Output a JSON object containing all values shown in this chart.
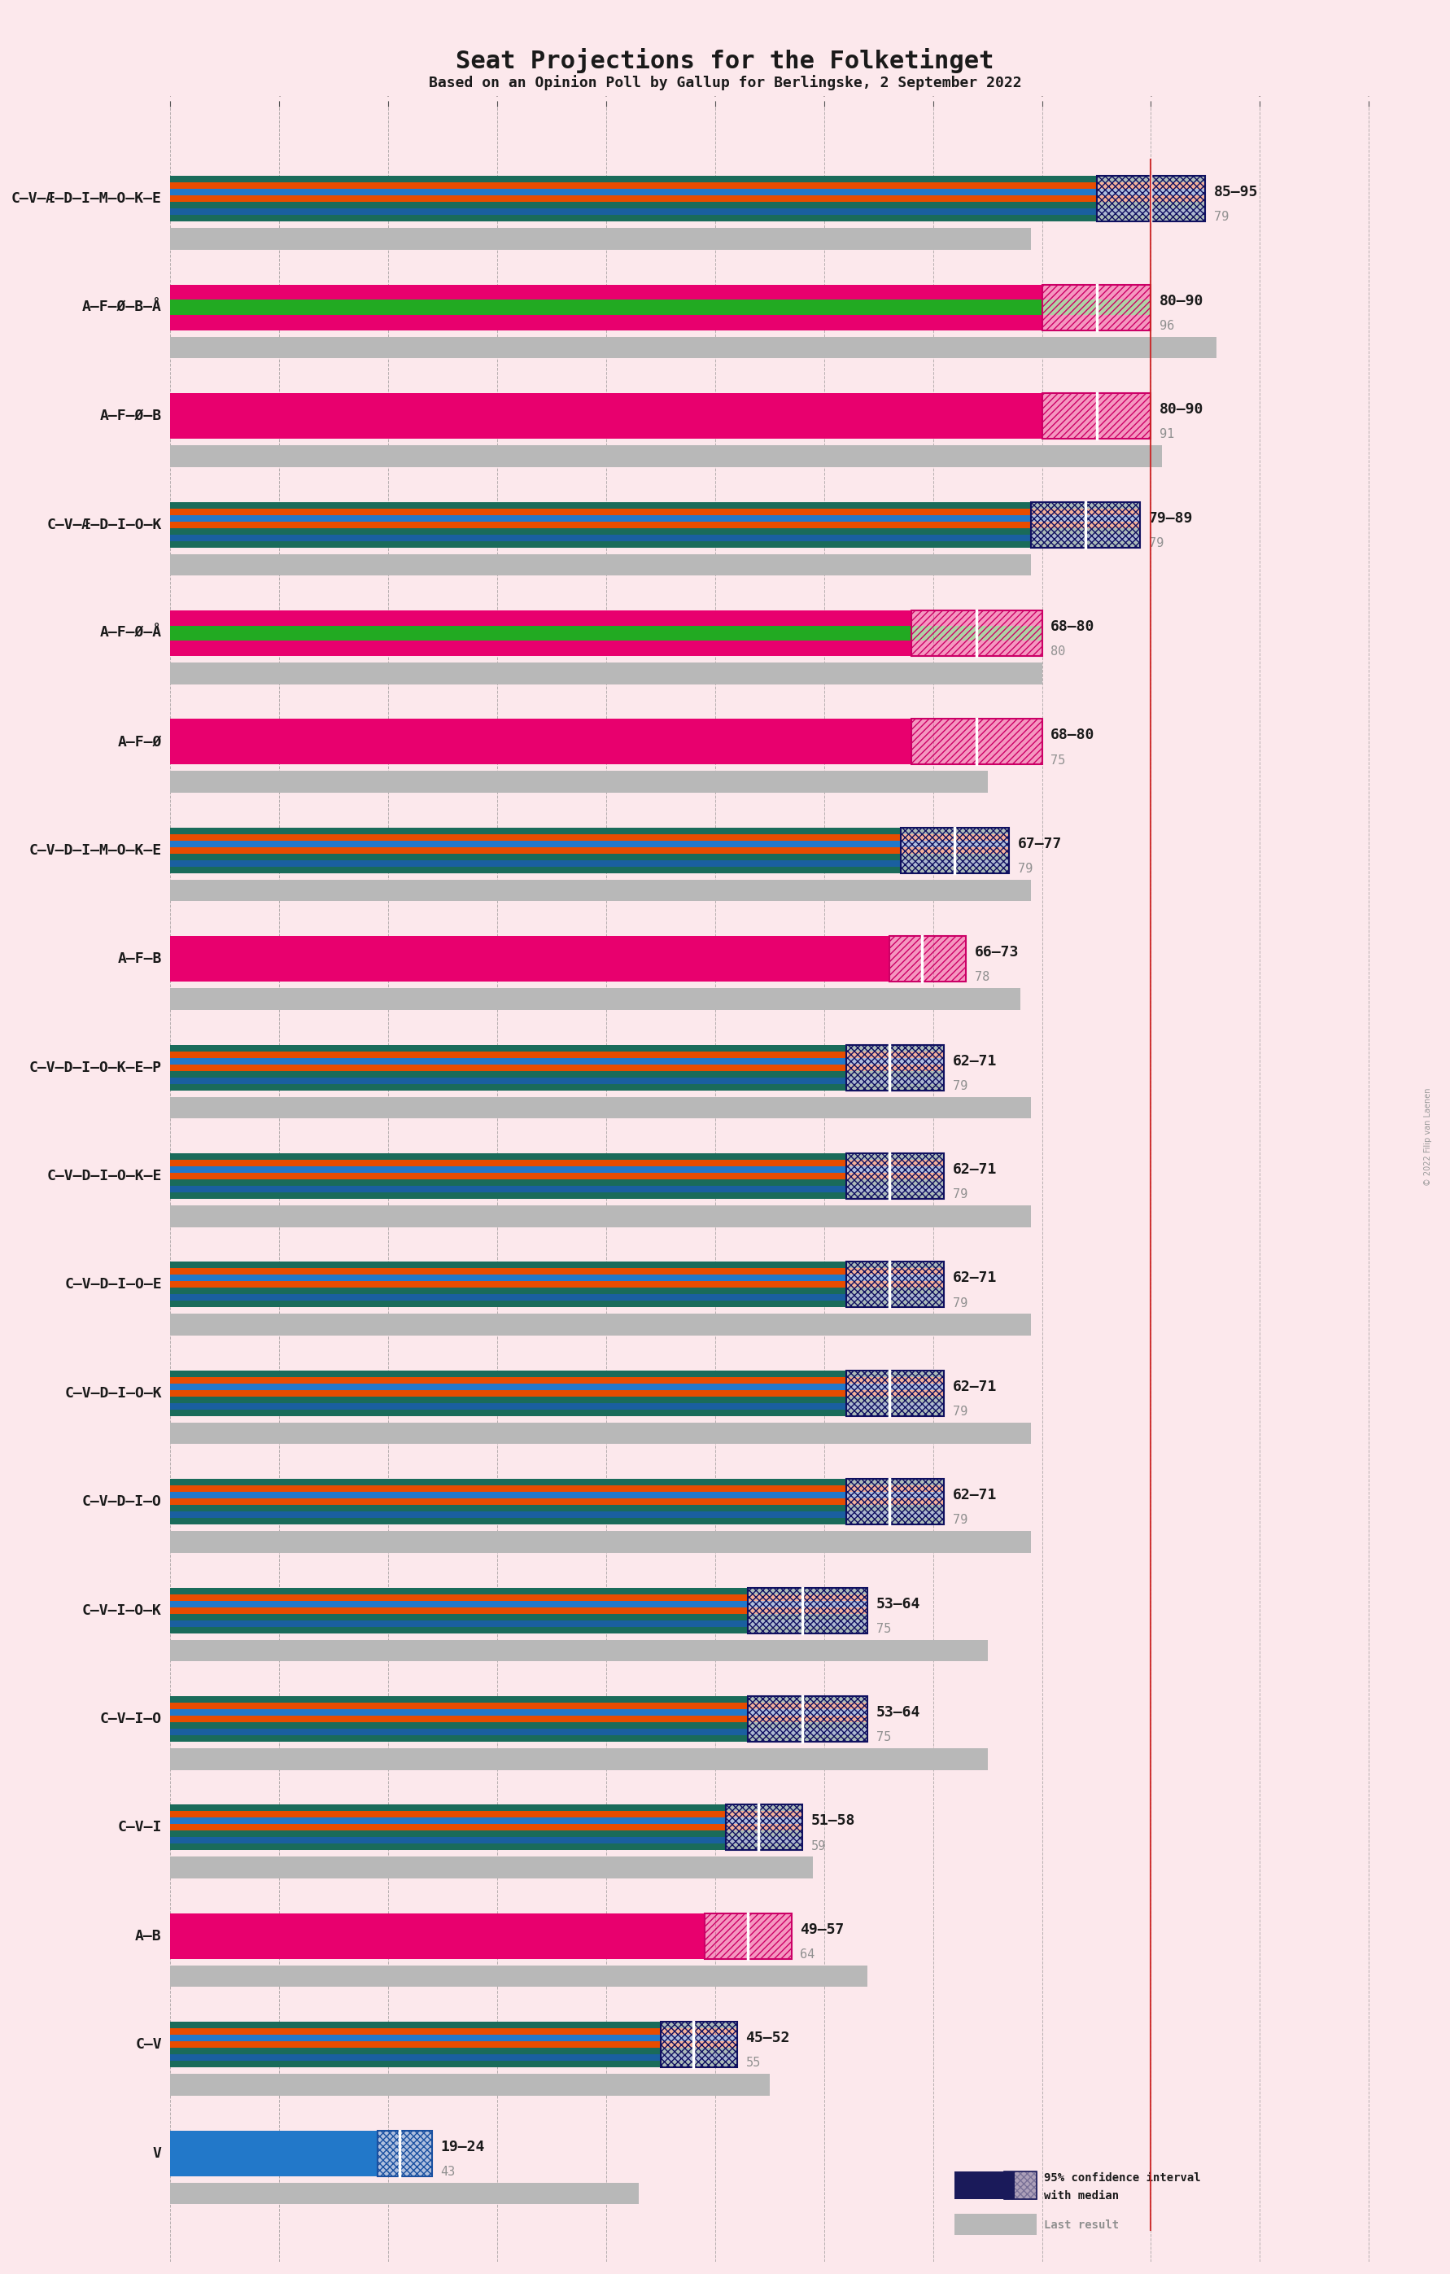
{
  "title": "Seat Projections for the Folketinget",
  "subtitle": "Based on an Opinion Poll by Gallup for Berlingske, 2 September 2022",
  "background_color": "#fce8ec",
  "coalitions": [
    {
      "name": "C–V–Æ–D–I–M–O–K–E",
      "ci_low": 85,
      "ci_high": 95,
      "median": 90,
      "last": 79,
      "type": "blue",
      "underline": false
    },
    {
      "name": "A–F–Ø–B–Å",
      "ci_low": 80,
      "ci_high": 90,
      "median": 85,
      "last": 96,
      "type": "red_ext",
      "underline": false
    },
    {
      "name": "A–F–Ø–B",
      "ci_low": 80,
      "ci_high": 90,
      "median": 85,
      "last": 91,
      "type": "red",
      "underline": true
    },
    {
      "name": "C–V–Æ–D–I–O–K",
      "ci_low": 79,
      "ci_high": 89,
      "median": 84,
      "last": 79,
      "type": "blue",
      "underline": false
    },
    {
      "name": "A–F–Ø–Å",
      "ci_low": 68,
      "ci_high": 80,
      "median": 74,
      "last": 80,
      "type": "red_ext",
      "underline": false
    },
    {
      "name": "A–F–Ø",
      "ci_low": 68,
      "ci_high": 80,
      "median": 74,
      "last": 75,
      "type": "red",
      "underline": false
    },
    {
      "name": "C–V–D–I–M–O–K–E",
      "ci_low": 67,
      "ci_high": 77,
      "median": 72,
      "last": 79,
      "type": "blue",
      "underline": false
    },
    {
      "name": "A–F–B",
      "ci_low": 66,
      "ci_high": 73,
      "median": 69,
      "last": 78,
      "type": "red",
      "underline": false
    },
    {
      "name": "C–V–D–I–O–K–E–P",
      "ci_low": 62,
      "ci_high": 71,
      "median": 66,
      "last": 79,
      "type": "blue",
      "underline": false
    },
    {
      "name": "C–V–D–I–O–K–E",
      "ci_low": 62,
      "ci_high": 71,
      "median": 66,
      "last": 79,
      "type": "blue",
      "underline": false
    },
    {
      "name": "C–V–D–I–O–E",
      "ci_low": 62,
      "ci_high": 71,
      "median": 66,
      "last": 79,
      "type": "blue",
      "underline": false
    },
    {
      "name": "C–V–D–I–O–K",
      "ci_low": 62,
      "ci_high": 71,
      "median": 66,
      "last": 79,
      "type": "blue",
      "underline": false
    },
    {
      "name": "C–V–D–I–O",
      "ci_low": 62,
      "ci_high": 71,
      "median": 66,
      "last": 79,
      "type": "blue",
      "underline": false
    },
    {
      "name": "C–V–I–O–K",
      "ci_low": 53,
      "ci_high": 64,
      "median": 58,
      "last": 75,
      "type": "blue",
      "underline": false
    },
    {
      "name": "C–V–I–O",
      "ci_low": 53,
      "ci_high": 64,
      "median": 58,
      "last": 75,
      "type": "blue",
      "underline": false
    },
    {
      "name": "C–V–I",
      "ci_low": 51,
      "ci_high": 58,
      "median": 54,
      "last": 59,
      "type": "blue",
      "underline": false
    },
    {
      "name": "A–B",
      "ci_low": 49,
      "ci_high": 57,
      "median": 53,
      "last": 64,
      "type": "red",
      "underline": false
    },
    {
      "name": "C–V",
      "ci_low": 45,
      "ci_high": 52,
      "median": 48,
      "last": 55,
      "type": "blue",
      "underline": false
    },
    {
      "name": "V",
      "ci_low": 19,
      "ci_high": 24,
      "median": 21,
      "last": 43,
      "type": "blue_v",
      "underline": false
    }
  ],
  "blue_stripe_colors": [
    "#1a6b5a",
    "#1a5fa0",
    "#1a6b5a",
    "#e84c00",
    "#2278c9",
    "#e84c00",
    "#1a6b5a"
  ],
  "red_stripe_colors": [
    "#e8006e",
    "#e8006e",
    "#e8006e"
  ],
  "red_ext_stripe_colors": [
    "#e8006e",
    "#22aa22",
    "#e8006e"
  ],
  "blue_v_colors": [
    "#2278c9"
  ],
  "xlim_low": 0,
  "xlim_high": 115,
  "majority_line": 90,
  "copyright": "© 2022 Filip van Laenen"
}
